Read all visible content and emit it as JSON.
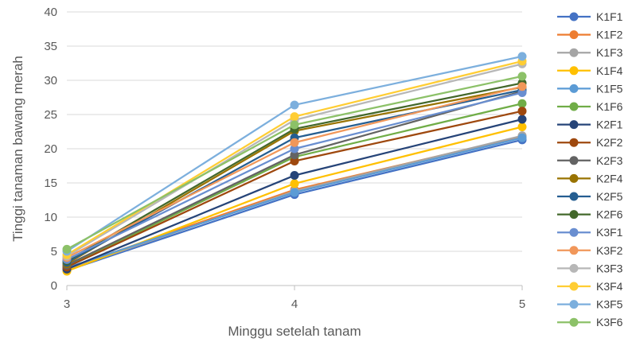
{
  "chart_data": {
    "type": "line",
    "title": "",
    "xlabel": "Minggu setelah tanam",
    "ylabel": "Tinggi tanaman bawang merah",
    "x": [
      3,
      4,
      5
    ],
    "ylim": [
      0,
      40
    ],
    "yticks": [
      0,
      5,
      10,
      15,
      20,
      25,
      30,
      35,
      40
    ],
    "grid": true,
    "legend_position": "right",
    "series": [
      {
        "name": "K1F1",
        "color": "#4472C4",
        "values": [
          2.2,
          13.3,
          21.3
        ]
      },
      {
        "name": "K1F2",
        "color": "#ED7D31",
        "values": [
          2.5,
          14.0,
          21.8
        ]
      },
      {
        "name": "K1F3",
        "color": "#A5A5A5",
        "values": [
          2.3,
          13.8,
          21.9
        ]
      },
      {
        "name": "K1F4",
        "color": "#FFC000",
        "values": [
          2.1,
          14.9,
          23.2
        ]
      },
      {
        "name": "K1F5",
        "color": "#5B9BD5",
        "values": [
          2.6,
          13.6,
          21.6
        ]
      },
      {
        "name": "K1F6",
        "color": "#70AD47",
        "values": [
          2.8,
          18.8,
          26.6
        ]
      },
      {
        "name": "K2F1",
        "color": "#264478",
        "values": [
          2.4,
          16.1,
          24.3
        ]
      },
      {
        "name": "K2F2",
        "color": "#9E480E",
        "values": [
          2.7,
          18.2,
          25.5
        ]
      },
      {
        "name": "K2F3",
        "color": "#636363",
        "values": [
          3.0,
          19.1,
          28.4
        ]
      },
      {
        "name": "K2F4",
        "color": "#997300",
        "values": [
          3.2,
          22.6,
          29.0
        ]
      },
      {
        "name": "K2F5",
        "color": "#255E91",
        "values": [
          3.4,
          21.6,
          28.6
        ]
      },
      {
        "name": "K2F6",
        "color": "#43682B",
        "values": [
          3.6,
          22.9,
          29.6
        ]
      },
      {
        "name": "K3F1",
        "color": "#698ED0",
        "values": [
          3.8,
          20.0,
          28.2
        ]
      },
      {
        "name": "K3F2",
        "color": "#F1975A",
        "values": [
          4.1,
          20.9,
          29.1
        ]
      },
      {
        "name": "K3F3",
        "color": "#B7B7B7",
        "values": [
          4.3,
          24.2,
          32.4
        ]
      },
      {
        "name": "K3F4",
        "color": "#FFCD33",
        "values": [
          4.5,
          24.7,
          32.8
        ]
      },
      {
        "name": "K3F5",
        "color": "#7CAFDD",
        "values": [
          5.0,
          26.4,
          33.5
        ]
      },
      {
        "name": "K3F6",
        "color": "#8CC168",
        "values": [
          5.3,
          23.5,
          30.6
        ]
      }
    ]
  }
}
